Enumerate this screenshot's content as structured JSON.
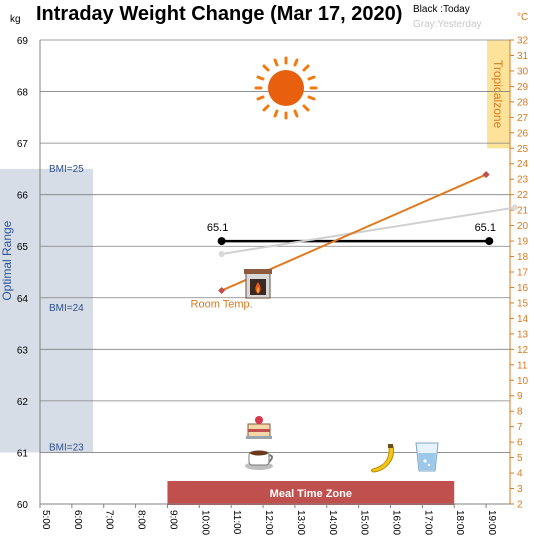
{
  "chart_data": {
    "type": "line",
    "title": "Intraday Weight Change (Mar 17, 2020)",
    "legend": {
      "today": "Black :Today",
      "yesterday": "Gray:Yesterday",
      "placement": "top-right"
    },
    "y_unit": "kg",
    "y2_unit": "°C",
    "ylim": [
      60,
      69
    ],
    "y2lim": [
      2,
      32
    ],
    "x_ticks": [
      "5:00",
      "6:00",
      "7:00",
      "8:00",
      "9:00",
      "10:00",
      "11:00",
      "12:00",
      "13:00",
      "14:00",
      "15:00",
      "16:00",
      "17:00",
      "18:00",
      "19:00"
    ],
    "y_ticks": [
      60,
      61,
      62,
      63,
      64,
      65,
      66,
      67,
      68,
      69
    ],
    "y2_ticks": [
      2,
      3,
      4,
      5,
      6,
      7,
      8,
      9,
      10,
      11,
      12,
      13,
      14,
      15,
      16,
      17,
      18,
      19,
      20,
      21,
      22,
      23,
      24,
      25,
      26,
      27,
      28,
      29,
      30,
      31,
      32
    ],
    "grid": true,
    "series": [
      {
        "name": "Today",
        "axis": "y",
        "color": "#000000",
        "points": [
          [
            10.7,
            65.1
          ],
          [
            19.1,
            65.1
          ]
        ],
        "labels": [
          "65.1",
          "65.1"
        ]
      },
      {
        "name": "Yesterday",
        "axis": "y",
        "color": "#d0d0d0",
        "points": [
          [
            10.7,
            64.85
          ],
          [
            19.9,
            65.75
          ]
        ]
      },
      {
        "name": "Room Temp.",
        "axis": "y2",
        "color": "#e07a20",
        "points": [
          [
            10.7,
            15.8
          ],
          [
            19.0,
            23.3
          ]
        ]
      }
    ],
    "bands": {
      "optimal_label": "Optimal Range",
      "bmi_labels": [
        {
          "text": "BMI=25",
          "value": 66.5
        },
        {
          "text": "BMI=24",
          "value": 63.8
        },
        {
          "text": "BMI=23",
          "value": 61.1
        }
      ],
      "optimal_range": [
        61.0,
        66.5
      ],
      "tropical_label": "Tropicalzone",
      "tropical_range": [
        25.0,
        32.0
      ],
      "meal_label": "Meal Time Zone",
      "meal_range": [
        9.0,
        18.0
      ]
    },
    "room_temp_label": "Room Temp."
  },
  "icons": {
    "sun": "sun-icon",
    "fireplace": "fireplace-icon",
    "cake": "cake-icon",
    "coffee": "coffee-icon",
    "banana": "banana-icon",
    "water": "water-glass-icon"
  }
}
